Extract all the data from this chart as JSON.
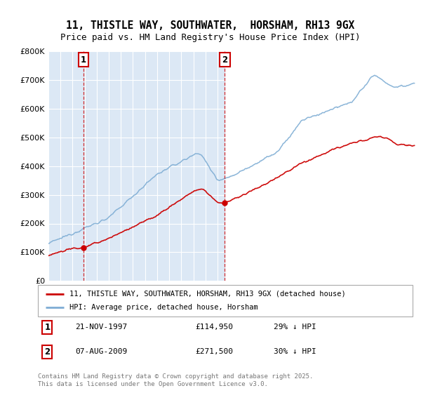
{
  "title_line1": "11, THISTLE WAY, SOUTHWATER,  HORSHAM, RH13 9GX",
  "title_line2": "Price paid vs. HM Land Registry's House Price Index (HPI)",
  "sale1": {
    "date": "21-NOV-1997",
    "price": 114950,
    "note": "29% ↓ HPI"
  },
  "sale2": {
    "date": "07-AUG-2009",
    "price": 271500,
    "note": "30% ↓ HPI"
  },
  "sale1_x": 1997.9,
  "sale2_x": 2009.6,
  "legend_line1": "11, THISTLE WAY, SOUTHWATER, HORSHAM, RH13 9GX (detached house)",
  "legend_line2": "HPI: Average price, detached house, Horsham",
  "footer": "Contains HM Land Registry data © Crown copyright and database right 2025.\nThis data is licensed under the Open Government Licence v3.0.",
  "red_color": "#cc0000",
  "blue_color": "#7eadd4",
  "shade_color": "#dce8f5",
  "ylim": [
    0,
    800000
  ],
  "ytick_max": 800000,
  "xlim_start": 1995,
  "xlim_end": 2025.5
}
